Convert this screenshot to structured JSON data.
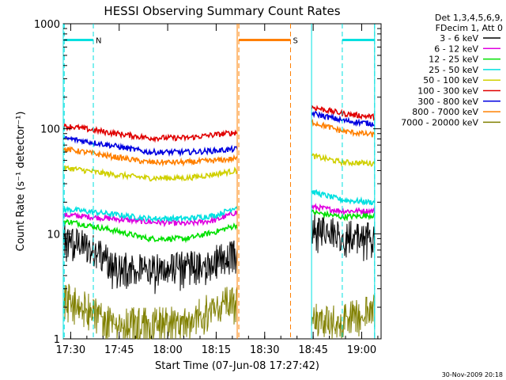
{
  "chart_data": {
    "type": "line",
    "title": "HESSI Observing Summary Count Rates",
    "xlabel": "Start Time (07-Jun-08 17:27:42)",
    "ylabel": "Count Rate (s⁻¹ detector⁻¹)",
    "y_scale": "log",
    "ylim": [
      1,
      1000
    ],
    "xlim": [
      "17:27:42",
      "19:06:00"
    ],
    "x_ticks": [
      "17:30",
      "17:45",
      "18:00",
      "18:15",
      "18:30",
      "18:45",
      "19:00"
    ],
    "y_ticks": [
      "1",
      "10",
      "100",
      "1000"
    ],
    "legend_header": [
      "Det 1,3,4,5,6,9,",
      "FDecim 1, Att 0"
    ],
    "legend_position": "right",
    "footer_timestamp": "30-Nov-2009 20:18",
    "x_segments": [
      [
        "17:27:42",
        "18:21:30"
      ],
      [
        "18:44:30",
        "19:04:00"
      ]
    ],
    "series": [
      {
        "name": "3 - 6 keV",
        "color": "#000000",
        "seg1": [
          [
            17.5,
            9
          ],
          [
            17.65,
            7
          ],
          [
            17.7,
            5.5
          ],
          [
            17.8,
            4.8
          ],
          [
            18.0,
            4.8
          ],
          [
            18.2,
            5.5
          ],
          [
            18.35,
            6.5
          ]
        ],
        "seg2": [
          [
            18.75,
            12
          ],
          [
            18.85,
            11
          ],
          [
            18.95,
            10
          ],
          [
            19.05,
            9.5
          ]
        ]
      },
      {
        "name": "6 - 12 keV",
        "color": "#e000e0",
        "seg1": [
          [
            17.5,
            15
          ],
          [
            17.7,
            14
          ],
          [
            17.9,
            13
          ],
          [
            18.1,
            12.5
          ],
          [
            18.25,
            13.5
          ],
          [
            18.35,
            16
          ]
        ],
        "seg2": [
          [
            18.75,
            18
          ],
          [
            18.9,
            16.5
          ],
          [
            19.05,
            16.5
          ]
        ]
      },
      {
        "name": "12 - 25 keV",
        "color": "#00e000",
        "seg1": [
          [
            17.5,
            13
          ],
          [
            17.7,
            11
          ],
          [
            17.9,
            9
          ],
          [
            18.1,
            9
          ],
          [
            18.25,
            10.5
          ],
          [
            18.35,
            12
          ]
        ],
        "seg2": [
          [
            18.75,
            16
          ],
          [
            18.9,
            14.5
          ],
          [
            19.05,
            15
          ]
        ]
      },
      {
        "name": "25 - 50 keV",
        "color": "#00e0e0",
        "seg1": [
          [
            17.5,
            17
          ],
          [
            17.7,
            15.5
          ],
          [
            17.9,
            14
          ],
          [
            18.1,
            14
          ],
          [
            18.25,
            15
          ],
          [
            18.35,
            18
          ]
        ],
        "seg2": [
          [
            18.75,
            25
          ],
          [
            18.9,
            21
          ],
          [
            19.05,
            20
          ]
        ]
      },
      {
        "name": "50 - 100 keV",
        "color": "#d0d000",
        "seg1": [
          [
            17.5,
            42
          ],
          [
            17.7,
            37
          ],
          [
            17.9,
            34
          ],
          [
            18.1,
            34
          ],
          [
            18.25,
            37
          ],
          [
            18.35,
            40
          ]
        ],
        "seg2": [
          [
            18.75,
            55
          ],
          [
            18.9,
            48
          ],
          [
            19.05,
            47
          ]
        ]
      },
      {
        "name": "100 - 300 keV",
        "color": "#e00000",
        "seg1": [
          [
            17.5,
            105
          ],
          [
            17.7,
            92
          ],
          [
            17.9,
            82
          ],
          [
            18.1,
            82
          ],
          [
            18.25,
            88
          ],
          [
            18.35,
            92
          ]
        ],
        "seg2": [
          [
            18.75,
            160
          ],
          [
            18.9,
            140
          ],
          [
            19.05,
            130
          ]
        ]
      },
      {
        "name": "300 - 800 keV",
        "color": "#0000e0",
        "seg1": [
          [
            17.5,
            80
          ],
          [
            17.7,
            70
          ],
          [
            17.9,
            60
          ],
          [
            18.1,
            60
          ],
          [
            18.25,
            62
          ],
          [
            18.35,
            64
          ]
        ],
        "seg2": [
          [
            18.75,
            140
          ],
          [
            18.9,
            120
          ],
          [
            19.05,
            112
          ]
        ]
      },
      {
        "name": "800 - 7000 keV",
        "color": "#ff8000",
        "seg1": [
          [
            17.5,
            63
          ],
          [
            17.7,
            55
          ],
          [
            17.9,
            48
          ],
          [
            18.1,
            48
          ],
          [
            18.25,
            50
          ],
          [
            18.35,
            52
          ]
        ],
        "seg2": [
          [
            18.75,
            115
          ],
          [
            18.9,
            95
          ],
          [
            19.05,
            88
          ]
        ]
      },
      {
        "name": "7000 - 20000 keV",
        "color": "#808000",
        "seg1": [
          [
            17.5,
            2.5
          ],
          [
            17.6,
            2.0
          ],
          [
            17.7,
            1.5
          ],
          [
            18.1,
            1.5
          ],
          [
            18.2,
            2.0
          ],
          [
            18.35,
            2.5
          ]
        ],
        "seg2": [
          [
            18.75,
            1.6
          ],
          [
            18.9,
            1.6
          ],
          [
            19.05,
            2.0
          ]
        ]
      }
    ],
    "annotations": [
      {
        "label": "N",
        "color": "#00e0e0",
        "start": "17:28",
        "end": "17:37"
      },
      {
        "label": "S",
        "color": "#ff8000",
        "start": "18:22",
        "end": "18:38"
      },
      {
        "label": "",
        "color": "#00e0e0",
        "start": "18:54",
        "end": "19:04"
      }
    ]
  }
}
